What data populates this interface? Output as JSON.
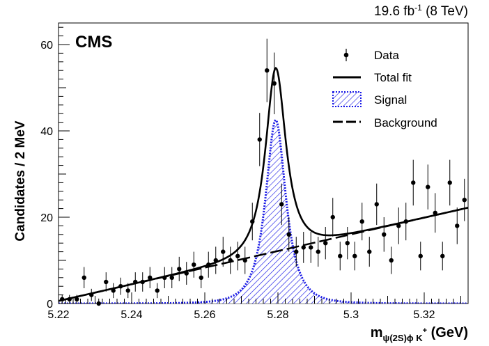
{
  "chart_data": {
    "type": "scatter",
    "experiment_label": "CMS",
    "lumi_label": {
      "main": "19.6 fb",
      "sup": "-1",
      "energy": " (8 TeV)"
    },
    "xlabel": {
      "base": "m",
      "sub": "ψ(2S)ϕ K",
      "sup": "+",
      "unit": " (GeV)"
    },
    "ylabel": "Candidates / 2 MeV",
    "xlim": [
      5.22,
      5.332
    ],
    "ylim": [
      0,
      65
    ],
    "x_tick_labels": [
      "5.22",
      "5.24",
      "5.26",
      "5.28",
      "5.3",
      "5.32"
    ],
    "x_ticks": [
      5.22,
      5.24,
      5.26,
      5.28,
      5.3,
      5.32
    ],
    "y_ticks": [
      0,
      20,
      40,
      60
    ],
    "y_tick_labels": [
      "0",
      "20",
      "40",
      "60"
    ],
    "legend": {
      "position": "top-right",
      "entries": [
        "Data",
        "Total fit",
        "Signal",
        "Background"
      ]
    },
    "colors": {
      "data": "#000000",
      "fit": "#000000",
      "signal": "#1a1ae6",
      "background": "#000000"
    },
    "series": [
      {
        "name": "Data",
        "kind": "points_with_errors",
        "x": [
          5.221,
          5.223,
          5.225,
          5.227,
          5.229,
          5.231,
          5.233,
          5.235,
          5.237,
          5.239,
          5.241,
          5.243,
          5.245,
          5.247,
          5.249,
          5.251,
          5.253,
          5.255,
          5.257,
          5.259,
          5.261,
          5.263,
          5.265,
          5.267,
          5.269,
          5.271,
          5.273,
          5.275,
          5.277,
          5.279,
          5.281,
          5.283,
          5.285,
          5.287,
          5.289,
          5.291,
          5.293,
          5.295,
          5.297,
          5.299,
          5.301,
          5.303,
          5.305,
          5.307,
          5.309,
          5.311,
          5.313,
          5.315,
          5.317,
          5.319,
          5.321,
          5.323,
          5.325,
          5.327,
          5.329,
          5.331
        ],
        "y": [
          1,
          1,
          1,
          6,
          2,
          0,
          5,
          3,
          4,
          3,
          5,
          5,
          6,
          3,
          6,
          6,
          8,
          7,
          9,
          6,
          9,
          10,
          12,
          10,
          11,
          10,
          19,
          38,
          54,
          51,
          23,
          16,
          12,
          13,
          13,
          12,
          14,
          20,
          11,
          14,
          11,
          19,
          12,
          23,
          16,
          10,
          18,
          19,
          28,
          11,
          27,
          21,
          11,
          28,
          18,
          24
        ]
      },
      {
        "name": "Total fit",
        "kind": "line",
        "peak": {
          "mean": 5.2794,
          "sigma": 0.0032,
          "amplitude": 42.5
        }
      },
      {
        "name": "Signal",
        "kind": "hatched_area",
        "peak": {
          "mean": 5.2794,
          "sigma": 0.0032,
          "amplitude": 42.5
        }
      },
      {
        "name": "Background",
        "kind": "dashed_line",
        "endpoints": {
          "x": [
            5.22,
            5.332
          ],
          "y": [
            0.6,
            22.2
          ]
        }
      }
    ]
  }
}
